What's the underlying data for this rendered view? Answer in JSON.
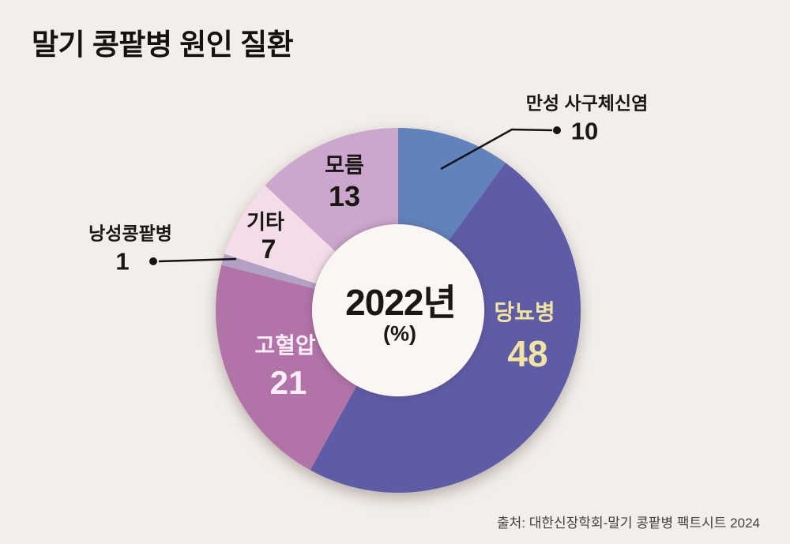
{
  "title": "말기 콩팥병 원인 질환",
  "source": "출처: 대한신장학회-말기 콩팥병 팩트시트 2024",
  "center": {
    "year_label": "2022년",
    "unit_label": "(%)"
  },
  "colors": {
    "background": "#f3eeea",
    "hole": "#faf6f1",
    "text": "#161210",
    "leader_line": "#141414"
  },
  "chart_data": {
    "type": "pie",
    "subtype": "donut",
    "title": "말기 콩팥병 원인 질환",
    "center_label": "2022년",
    "unit": "%",
    "start_angle_deg": 0,
    "direction": "clockwise",
    "total": 100,
    "segments": [
      {
        "name": "만성 사구체신염",
        "value": 10,
        "color": "#6282bc",
        "label_color": "#1a1715",
        "callout": true
      },
      {
        "name": "당뇨병",
        "value": 48,
        "color": "#5e5ca6",
        "label_color": "#f1e3a1",
        "callout": false
      },
      {
        "name": "고혈압",
        "value": 21,
        "color": "#b173a8",
        "label_color": "#f9eef6",
        "callout": false
      },
      {
        "name": "낭성콩팥병",
        "value": 1,
        "color": "#b2a1c3",
        "label_color": "#1a1715",
        "callout": true
      },
      {
        "name": "기타",
        "value": 7,
        "color": "#f4dde8",
        "label_color": "#1a1715",
        "callout": false
      },
      {
        "name": "모름",
        "value": 13,
        "color": "#cba6cd",
        "label_color": "#1a1715",
        "callout": false
      }
    ]
  }
}
